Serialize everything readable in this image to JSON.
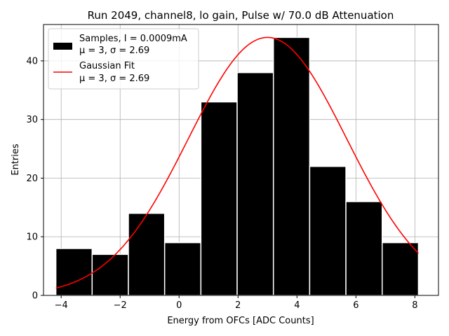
{
  "chart_data": {
    "type": "bar",
    "title": "Run 2049, channel8, lo gain, Pulse w/ 70.0 dB Attenuation",
    "xlabel": "Energy from OFCs [ADC Counts]",
    "ylabel": "Entries",
    "xlim": [
      -4.6,
      8.8
    ],
    "ylim": [
      0,
      46.2
    ],
    "xticks": [
      -4,
      -2,
      0,
      2,
      4,
      6,
      8
    ],
    "xtick_labels": [
      "−4",
      "−2",
      "0",
      "2",
      "4",
      "6",
      "8"
    ],
    "yticks": [
      0,
      10,
      20,
      30,
      40
    ],
    "ytick_labels": [
      "0",
      "10",
      "20",
      "30",
      "40"
    ],
    "grid": true,
    "bin_edges": [
      -4.18,
      -2.95,
      -1.72,
      -0.49,
      0.74,
      1.97,
      3.2,
      4.43,
      5.66,
      6.89,
      8.12
    ],
    "counts": [
      8,
      7,
      14,
      9,
      33,
      38,
      44,
      22,
      16,
      9
    ],
    "histogram_color": "#000000",
    "histogram_edge_color": "#ffffff",
    "fit": {
      "type": "gaussian",
      "mu": 3,
      "sigma": 2.69,
      "amplitude": 44,
      "x_range": [
        -4.18,
        8.12
      ],
      "color": "#ff0000"
    },
    "legend": {
      "location": "top-left",
      "entries": [
        {
          "line1": "Samples, I = 0.0009mA",
          "line2": "μ = 3, σ = 2.69",
          "marker": "patch",
          "color": "#000000"
        },
        {
          "line1": "Gaussian Fit",
          "line2": "μ = 3, σ = 2.69",
          "marker": "line",
          "color": "#ff0000"
        }
      ]
    }
  }
}
